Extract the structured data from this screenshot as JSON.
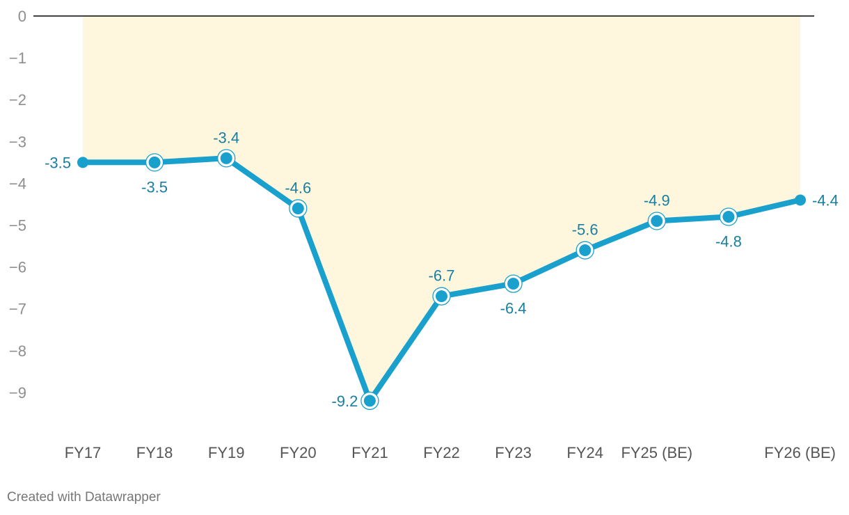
{
  "chart_data": {
    "type": "line",
    "categories": [
      "FY17",
      "FY18",
      "FY19",
      "FY20",
      "FY21",
      "FY22",
      "FY23",
      "FY24",
      "FY25 (BE)",
      "",
      "FY26 (BE)"
    ],
    "series": [
      {
        "values": [
          -3.5,
          -3.5,
          -3.4,
          -4.6,
          -9.2,
          -6.7,
          -6.4,
          -5.6,
          -4.9,
          -4.8,
          -4.4
        ]
      }
    ],
    "data_labels": [
      "-3.5",
      "-3.5",
      "-3.4",
      "-4.6",
      "-9.2",
      "-6.7",
      "-6.4",
      "-5.6",
      "-4.9",
      "-4.8",
      "-4.4"
    ],
    "yticks": [
      0,
      -1,
      -2,
      -3,
      -4,
      -5,
      -6,
      -7,
      -8,
      -9
    ],
    "ytick_labels": [
      "0",
      "−1",
      "−2",
      "−3",
      "−4",
      "−5",
      "−6",
      "−7",
      "−8",
      "−9"
    ],
    "ylim": [
      -10,
      0
    ],
    "title": "",
    "xlabel": "",
    "ylabel": "",
    "grid": false,
    "legend": "none",
    "colors": {
      "line": "#1aa0cc",
      "fill": "#fff7dd",
      "label": "#1a7ea1",
      "zero_line": "#000000"
    }
  },
  "footer": {
    "credit": "Created with Datawrapper"
  }
}
